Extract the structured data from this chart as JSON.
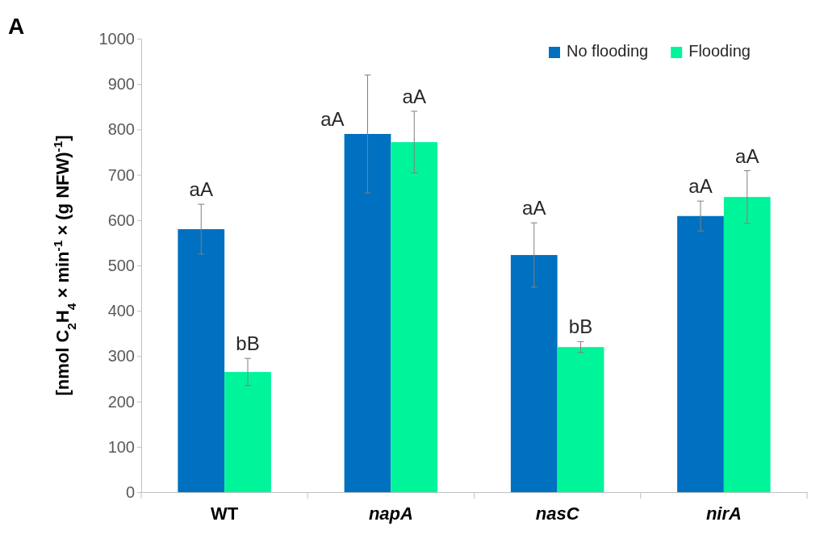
{
  "chart_data": {
    "type": "bar",
    "title": "A",
    "ylabel": "[nmol C$_{2}$H$_{4}$ × min$^{-1}$ × (g  NFW)$^{-1}$]",
    "categories": [
      "WT",
      "napA",
      "nasC",
      "nirA"
    ],
    "series": [
      {
        "name": "No flooding",
        "color": "#0070c0",
        "values": [
          580,
          790,
          523,
          609
        ],
        "errors": [
          55,
          130,
          71,
          33
        ],
        "value_labels": [
          "aA",
          "aA",
          "aA",
          "aA"
        ]
      },
      {
        "name": "Flooding",
        "color": "#00f59b",
        "values": [
          265,
          772,
          320,
          651
        ],
        "errors": [
          30,
          68,
          12,
          58
        ],
        "value_labels": [
          "bB",
          "aA",
          "bB",
          "aA"
        ]
      }
    ],
    "ylim": [
      0,
      1000
    ],
    "yticks": [
      0,
      100,
      200,
      300,
      400,
      500,
      600,
      700,
      800,
      900,
      1000
    ],
    "grid": false,
    "legend": "top right"
  }
}
